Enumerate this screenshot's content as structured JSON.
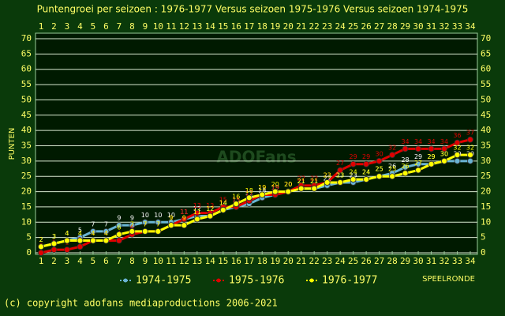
{
  "chart_data": {
    "type": "line",
    "title": "Puntengroei per seizoen : 1976-1977 Versus seizoen 1975-1976 Versus seizoen 1974-1975",
    "y_label": "PUNTEN",
    "x_label": "SPEELRONDE",
    "watermark": "ADOFans",
    "footer": "(c) copyright adofans mediaproductions 2006-2021",
    "x": [
      1,
      2,
      3,
      4,
      5,
      6,
      7,
      8,
      9,
      10,
      11,
      12,
      13,
      14,
      15,
      16,
      17,
      18,
      19,
      20,
      21,
      22,
      23,
      24,
      25,
      26,
      27,
      28,
      29,
      30,
      31,
      32,
      33,
      34
    ],
    "xlim": [
      1,
      34
    ],
    "xticks": [
      1,
      2,
      3,
      4,
      5,
      6,
      7,
      8,
      9,
      10,
      11,
      12,
      13,
      14,
      15,
      16,
      17,
      18,
      19,
      20,
      21,
      22,
      23,
      24,
      25,
      26,
      27,
      28,
      29,
      30,
      31,
      32,
      33,
      34
    ],
    "ylim": [
      0,
      70
    ],
    "yticks": [
      0,
      5,
      10,
      15,
      20,
      25,
      30,
      35,
      40,
      45,
      50,
      55,
      60,
      65,
      70
    ],
    "grid": true,
    "series": [
      {
        "name": "1974-1975",
        "color": "#6ab4d4",
        "values": [
          2,
          3,
          4,
          5,
          7,
          7,
          9,
          9,
          10,
          10,
          10,
          11,
          12,
          12,
          14,
          15,
          16,
          18,
          19,
          20,
          21,
          21,
          22,
          23,
          23,
          24,
          25,
          26,
          28,
          29,
          29,
          30,
          30,
          30
        ]
      },
      {
        "name": "1975-1976",
        "color": "#e00000",
        "values": [
          0,
          1,
          1,
          2,
          4,
          4,
          4,
          6,
          7,
          7,
          9,
          11,
          13,
          13,
          15,
          15,
          17,
          19,
          19,
          20,
          22,
          22,
          23,
          27,
          29,
          29,
          30,
          32,
          34,
          34,
          34,
          34,
          36,
          37
        ]
      },
      {
        "name": "1976-1977",
        "color": "#ffff00",
        "values": [
          2,
          3,
          4,
          4,
          4,
          4,
          6,
          7,
          7,
          7,
          9,
          9,
          11,
          12,
          14,
          16,
          18,
          19,
          20,
          20,
          21,
          21,
          23,
          23,
          24,
          24,
          25,
          25,
          26,
          27,
          29,
          30,
          32,
          32
        ]
      }
    ]
  }
}
